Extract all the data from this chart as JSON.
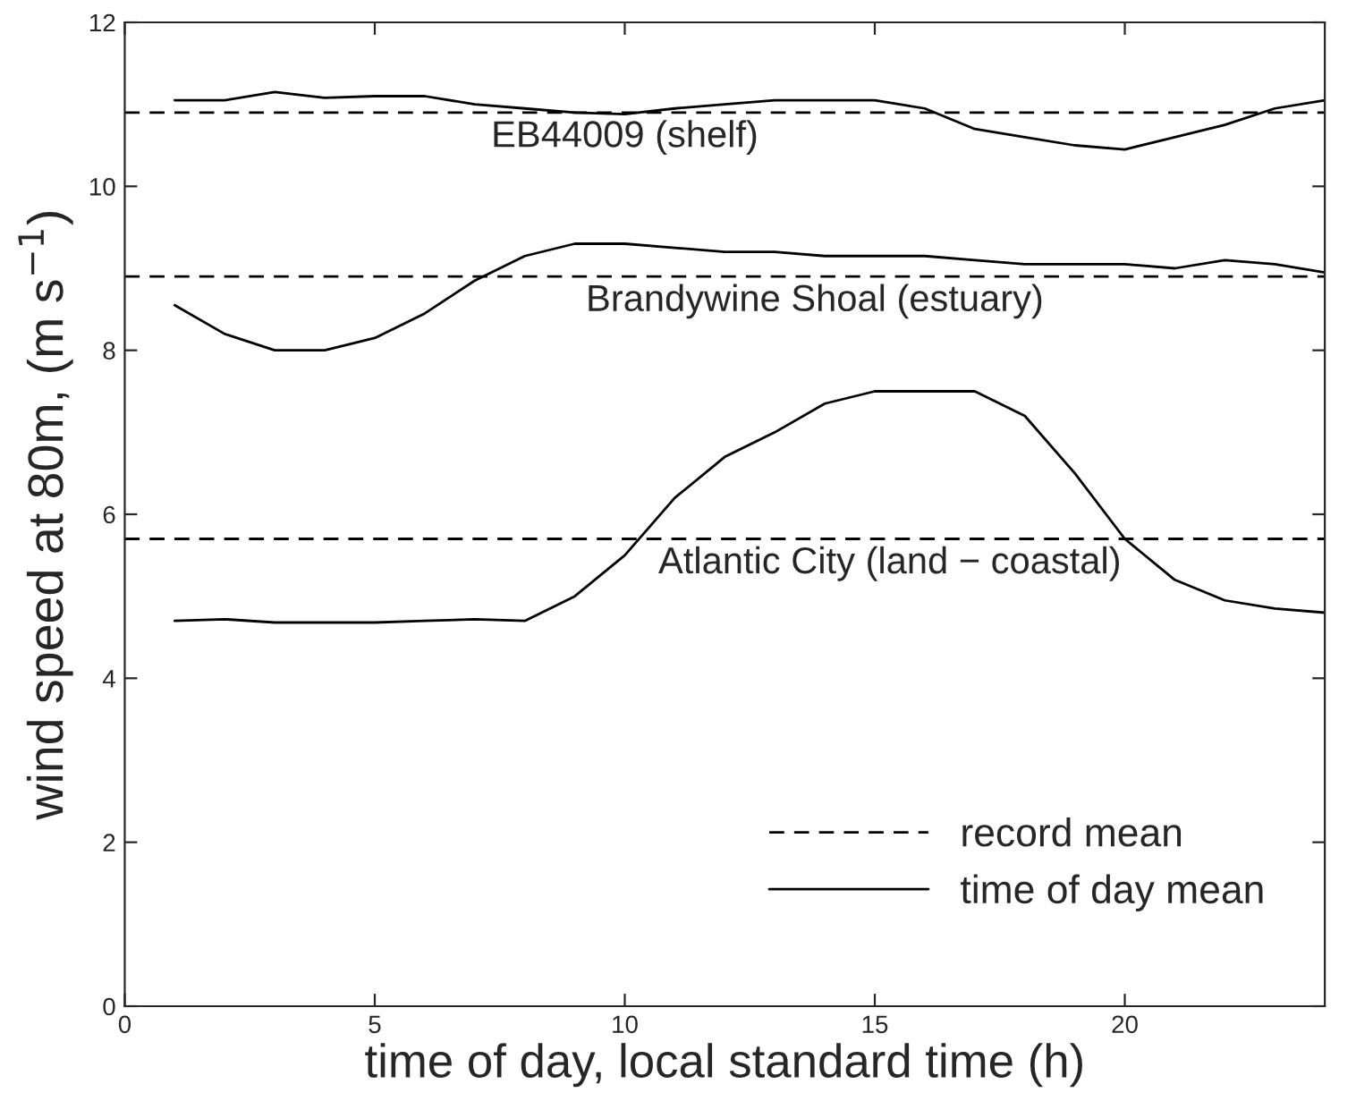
{
  "chart_data": {
    "type": "line",
    "xlabel": "time of day, local standard time (h)",
    "ylabel": "wind speed at 80m, (m s$^{−1}$)",
    "x": [
      1,
      2,
      3,
      4,
      5,
      6,
      7,
      8,
      9,
      10,
      11,
      12,
      13,
      14,
      15,
      16,
      17,
      18,
      19,
      20,
      21,
      22,
      23,
      24
    ],
    "series": [
      {
        "name": "time of day mean",
        "color": "#000000",
        "values": [
          11.05,
          11.05,
          11.15,
          11.08,
          11.1,
          11.1,
          11.0,
          10.95,
          10.9,
          10.88,
          10.95,
          11.0,
          11.05,
          11.05,
          11.05,
          10.95,
          10.7,
          10.6,
          10.5,
          10.45,
          10.6,
          10.75,
          10.95,
          11.05
        ]
      },
      {
        "color": "#000000",
        "values": [
          8.55,
          8.2,
          8.0,
          8.0,
          8.15,
          8.45,
          8.85,
          9.15,
          9.3,
          9.3,
          9.25,
          9.2,
          9.2,
          9.15,
          9.15,
          9.15,
          9.1,
          9.05,
          9.05,
          9.05,
          9.0,
          9.1,
          9.05,
          8.95
        ]
      },
      {
        "color": "#000000",
        "values": [
          4.7,
          4.72,
          4.68,
          4.68,
          4.68,
          4.7,
          4.72,
          4.7,
          5.0,
          5.5,
          6.2,
          6.7,
          7.0,
          7.35,
          7.5,
          7.5,
          7.5,
          7.2,
          6.5,
          5.7,
          5.2,
          4.95,
          4.85,
          4.8
        ]
      }
    ],
    "line_style": "solid",
    "ref_lines": [
      {
        "axis": "y",
        "value": 10.9,
        "label": "record mean",
        "color": "#000000",
        "line_style": "dashed"
      },
      {
        "axis": "y",
        "value": 8.9,
        "color": "#000000",
        "line_style": "dashed"
      },
      {
        "axis": "y",
        "value": 5.7,
        "color": "#000000",
        "line_style": "dashed"
      }
    ],
    "annotations": [
      {
        "text": "EB44009 (shelf)",
        "x": 10.0,
        "y": 10.9
      },
      {
        "text": "Brandywine Shoal (estuary)",
        "x": 13.8,
        "y": 8.9
      },
      {
        "text": "Atlantic City (land − coastal)",
        "x": 15.3,
        "y": 5.7
      }
    ],
    "legend": "bottom right",
    "grid": false,
    "xlim": [
      0,
      24
    ],
    "xticks": [
      0,
      5,
      10,
      15,
      20
    ],
    "ylim": [
      0,
      12
    ],
    "yticks": [
      0,
      2,
      4,
      6,
      8,
      10,
      12
    ]
  }
}
